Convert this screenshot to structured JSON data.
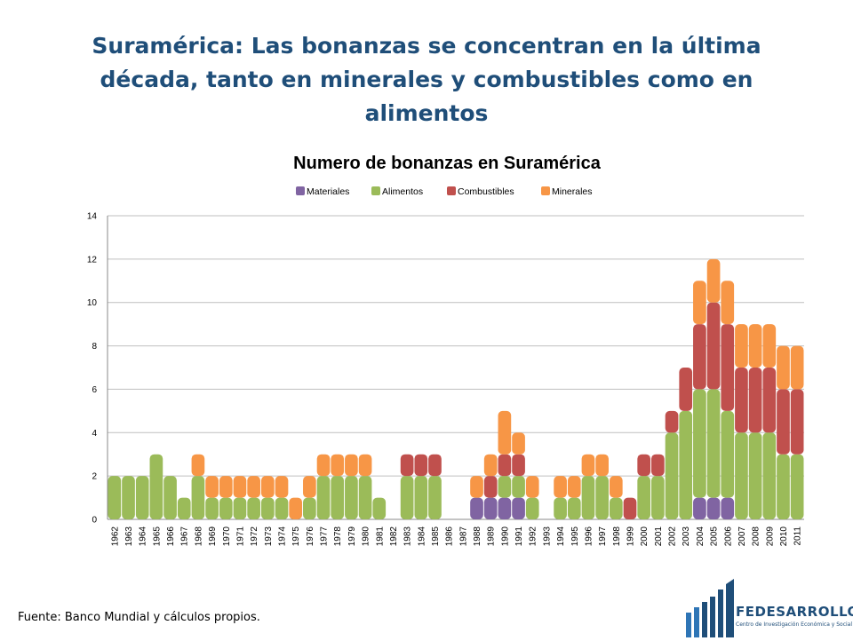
{
  "slide_title": "Suramérica: Las bonanzas se concentran en la última década, tanto en minerales y combustibles como en alimentos",
  "source_note": "Fuente: Banco Mundial y cálculos propios.",
  "logo": {
    "name": "FEDESARROLLO",
    "subtitle": "Centro de Investigación Económica y Social"
  },
  "chart_data": {
    "type": "bar",
    "stacked": true,
    "title": "Numero de bonanzas en Suramérica",
    "xlabel": "",
    "ylabel": "",
    "ylim": [
      0,
      14
    ],
    "yticks": [
      0,
      2,
      4,
      6,
      8,
      10,
      12,
      14
    ],
    "grid": true,
    "legend_position": "top",
    "categories": [
      "1962",
      "1963",
      "1964",
      "1965",
      "1966",
      "1967",
      "1968",
      "1969",
      "1970",
      "1971",
      "1972",
      "1973",
      "1974",
      "1975",
      "1976",
      "1977",
      "1978",
      "1979",
      "1980",
      "1981",
      "1982",
      "1983",
      "1984",
      "1985",
      "1986",
      "1987",
      "1988",
      "1989",
      "1990",
      "1991",
      "1992",
      "1993",
      "1994",
      "1995",
      "1996",
      "1997",
      "1998",
      "1999",
      "2000",
      "2001",
      "2002",
      "2003",
      "2004",
      "2005",
      "2006",
      "2007",
      "2008",
      "2009",
      "2010",
      "2011"
    ],
    "series": [
      {
        "name": "Materiales",
        "color": "#8064A2",
        "values": [
          0,
          0,
          0,
          0,
          0,
          0,
          0,
          0,
          0,
          0,
          0,
          0,
          0,
          0,
          0,
          0,
          0,
          0,
          0,
          0,
          0,
          0,
          0,
          0,
          0,
          0,
          1,
          1,
          1,
          1,
          0,
          0,
          0,
          0,
          0,
          0,
          0,
          0,
          0,
          0,
          0,
          0,
          1,
          1,
          1,
          0,
          0,
          0,
          0,
          0
        ]
      },
      {
        "name": "Alimentos",
        "color": "#9BBB59",
        "values": [
          2,
          2,
          2,
          3,
          2,
          1,
          2,
          1,
          1,
          1,
          1,
          1,
          1,
          0,
          1,
          2,
          2,
          2,
          2,
          1,
          0,
          2,
          2,
          2,
          0,
          0,
          0,
          0,
          1,
          1,
          1,
          0,
          1,
          1,
          2,
          2,
          1,
          0,
          2,
          2,
          4,
          5,
          5,
          5,
          4,
          4,
          4,
          4,
          3,
          3
        ]
      },
      {
        "name": "Combustibles",
        "color": "#C0504D",
        "values": [
          0,
          0,
          0,
          0,
          0,
          0,
          0,
          0,
          0,
          0,
          0,
          0,
          0,
          0,
          0,
          0,
          0,
          0,
          0,
          0,
          0,
          1,
          1,
          1,
          0,
          0,
          0,
          1,
          1,
          1,
          0,
          0,
          0,
          0,
          0,
          0,
          0,
          1,
          1,
          1,
          1,
          2,
          3,
          4,
          4,
          3,
          3,
          3,
          3,
          3
        ]
      },
      {
        "name": "Minerales",
        "color": "#F79646",
        "values": [
          0,
          0,
          0,
          0,
          0,
          0,
          1,
          1,
          1,
          1,
          1,
          1,
          1,
          1,
          1,
          1,
          1,
          1,
          1,
          0,
          0,
          0,
          0,
          0,
          0,
          0,
          1,
          1,
          2,
          1,
          1,
          0,
          1,
          1,
          1,
          1,
          1,
          0,
          0,
          0,
          0,
          0,
          2,
          2,
          2,
          2,
          2,
          2,
          2,
          2
        ]
      }
    ]
  }
}
